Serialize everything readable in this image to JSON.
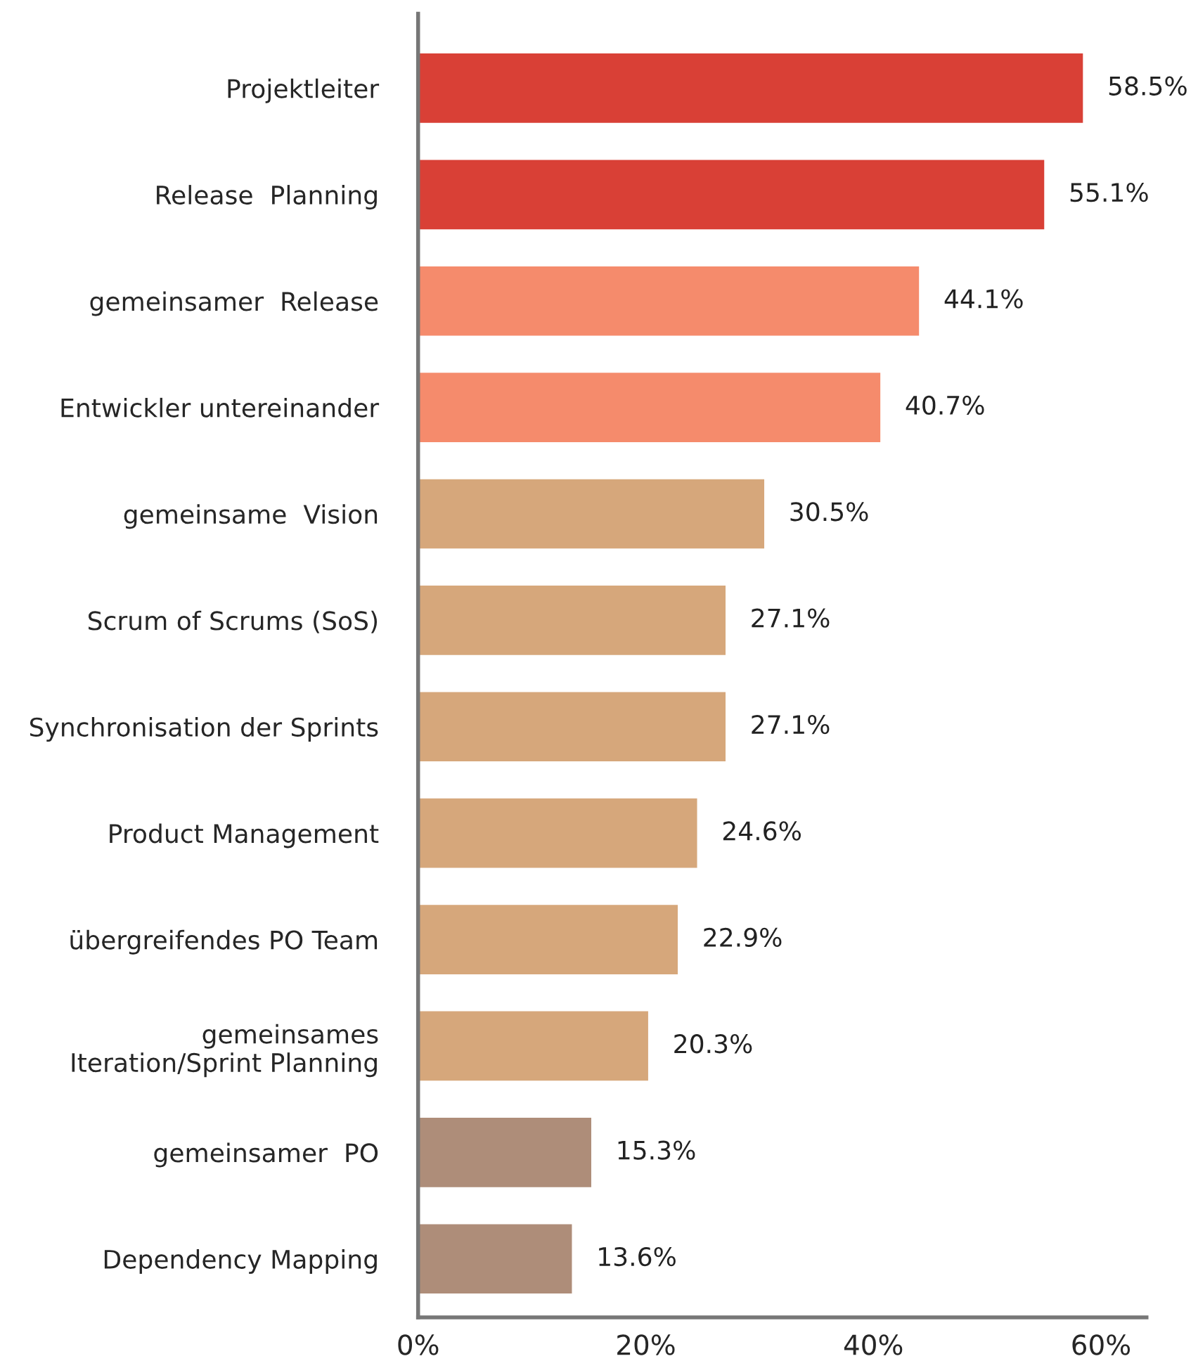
{
  "chart_data": {
    "type": "bar",
    "orientation": "horizontal",
    "categories": [
      "Projektleiter",
      "Release  Planning",
      "gemeinsamer  Release",
      "Entwickler untereinander",
      "gemeinsame  Vision",
      "Scrum of Scrums (SoS)",
      "Synchronisation der Sprints",
      "Product Management",
      "übergreifendes PO Team",
      "gemeinsames\nIteration/Sprint Planning",
      "gemeinsamer  PO",
      "Dependency Mapping"
    ],
    "values": [
      58.5,
      55.1,
      44.1,
      40.7,
      30.5,
      27.1,
      27.1,
      24.6,
      22.9,
      20.3,
      15.3,
      13.6
    ],
    "value_labels": [
      "58.5%",
      "55.1%",
      "44.1%",
      "40.7%",
      "30.5%",
      "27.1%",
      "27.1%",
      "24.6%",
      "22.9%",
      "20.3%",
      "15.3%",
      "13.6%"
    ],
    "colors": [
      "#d94036",
      "#d94036",
      "#f58b6c",
      "#f58b6c",
      "#d6a77b",
      "#d6a77b",
      "#d6a77b",
      "#d6a77b",
      "#d6a77b",
      "#d6a77b",
      "#ae8d79",
      "#ae8d79"
    ],
    "xlim": [
      0,
      64
    ],
    "xticks": [
      {
        "value": 0,
        "label": "0%"
      },
      {
        "value": 20,
        "label": "20%"
      },
      {
        "value": 40,
        "label": "40%"
      },
      {
        "value": 60,
        "label": "60%"
      }
    ],
    "grid": false,
    "legend": false
  }
}
